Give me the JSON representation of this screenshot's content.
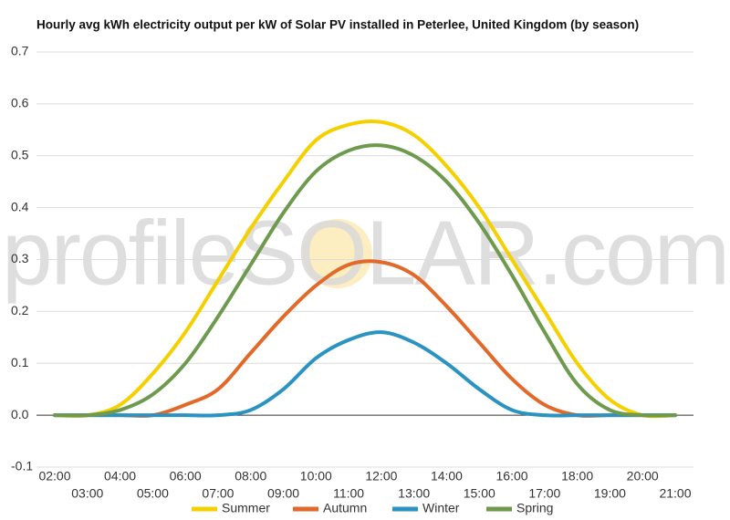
{
  "chart_data": {
    "type": "line",
    "title": "Hourly avg kWh electricity output per kW of Solar PV installed in Peterlee, United Kingdom (by season)",
    "watermark": "profileSOLAR.com",
    "categories": [
      "02:00",
      "03:00",
      "04:00",
      "05:00",
      "06:00",
      "07:00",
      "08:00",
      "09:00",
      "10:00",
      "11:00",
      "12:00",
      "13:00",
      "14:00",
      "15:00",
      "16:00",
      "17:00",
      "18:00",
      "19:00",
      "20:00",
      "21:00"
    ],
    "series": [
      {
        "name": "Summer",
        "color": "#f5d000",
        "values": [
          0,
          0,
          0.02,
          0.08,
          0.16,
          0.26,
          0.36,
          0.45,
          0.53,
          0.56,
          0.565,
          0.54,
          0.48,
          0.4,
          0.3,
          0.2,
          0.1,
          0.03,
          0,
          0
        ]
      },
      {
        "name": "Autumn",
        "color": "#e2692a",
        "values": [
          0,
          0,
          0,
          0,
          0.02,
          0.05,
          0.12,
          0.19,
          0.25,
          0.29,
          0.295,
          0.27,
          0.21,
          0.14,
          0.07,
          0.02,
          0,
          0,
          0,
          0
        ]
      },
      {
        "name": "Winter",
        "color": "#2a93c1",
        "values": [
          0,
          0,
          0,
          0,
          0,
          0,
          0.01,
          0.05,
          0.11,
          0.145,
          0.16,
          0.14,
          0.1,
          0.05,
          0.01,
          0,
          0,
          0,
          0,
          0
        ]
      },
      {
        "name": "Spring",
        "color": "#6e9a4e",
        "values": [
          0,
          0,
          0.01,
          0.04,
          0.1,
          0.19,
          0.29,
          0.39,
          0.47,
          0.51,
          0.52,
          0.5,
          0.45,
          0.37,
          0.27,
          0.16,
          0.06,
          0.01,
          0,
          0
        ]
      }
    ],
    "ylim": [
      -0.1,
      0.7
    ],
    "yticks": [
      -0.1,
      {
        "value": 0,
        "label": "0.0"
      },
      0.1,
      0.2,
      0.3,
      0.4,
      0.5,
      0.6,
      0.7
    ],
    "grid": true
  }
}
